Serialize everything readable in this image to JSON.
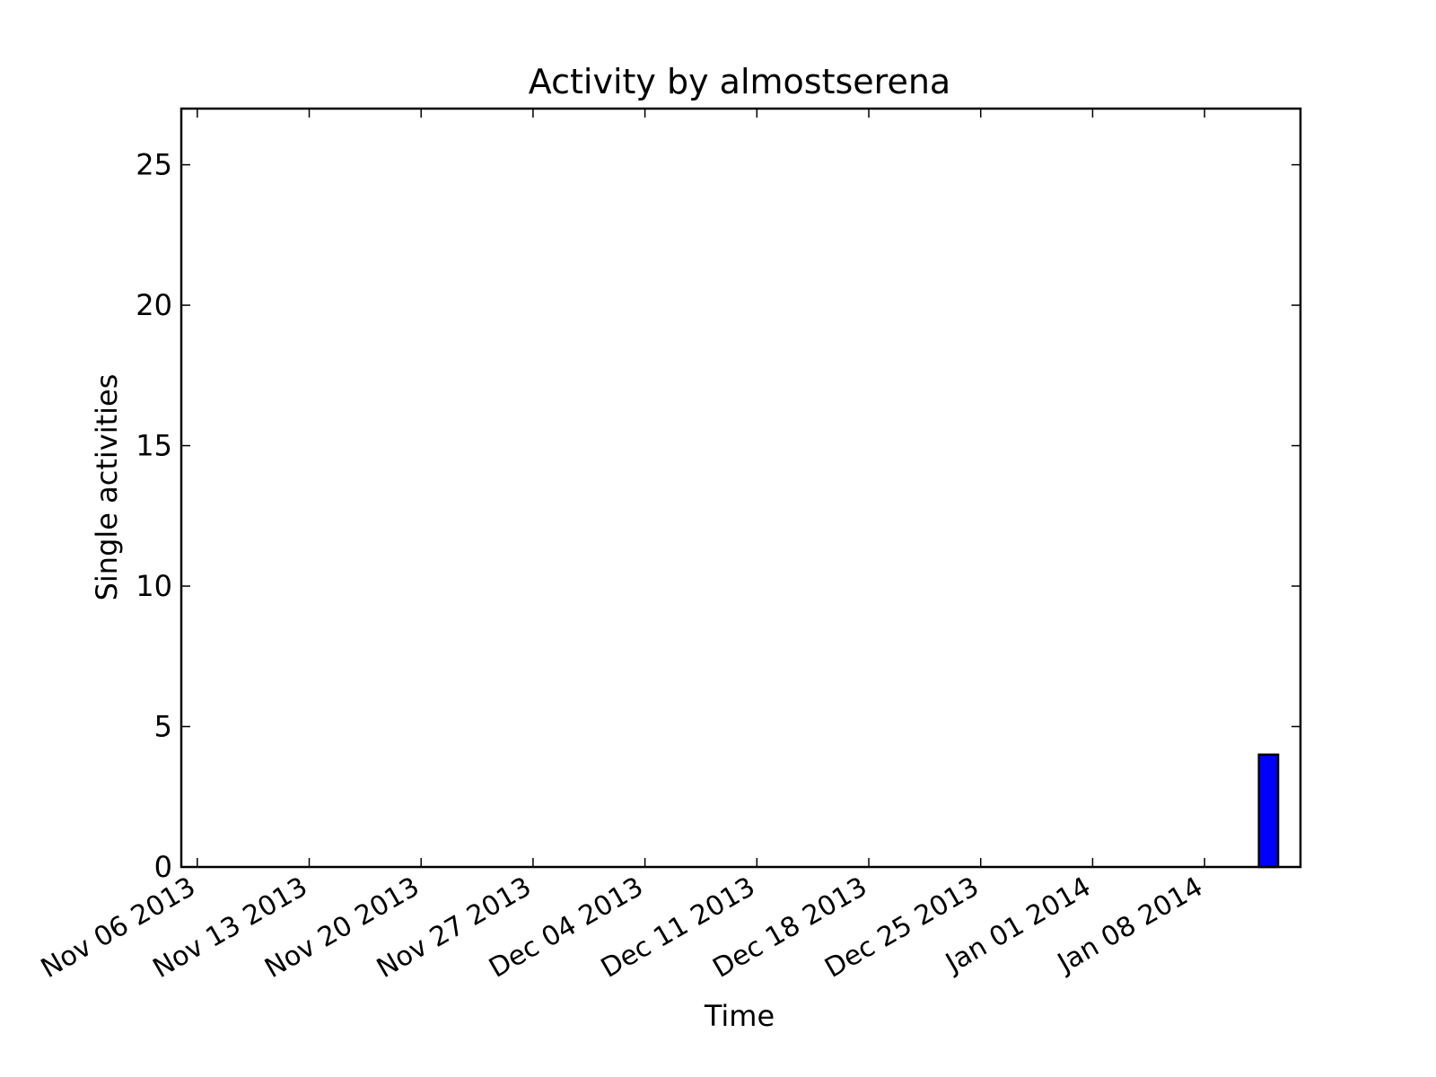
{
  "chart_data": {
    "type": "bar",
    "title": "Activity by almostserena",
    "xlabel": "Time",
    "ylabel": "Single activities",
    "x_axis": {
      "start": "2013-11-05",
      "end": "2014-01-14",
      "tick_dates": [
        "2013-11-06",
        "2013-11-13",
        "2013-11-20",
        "2013-11-27",
        "2013-12-04",
        "2013-12-11",
        "2013-12-18",
        "2013-12-25",
        "2014-01-01",
        "2014-01-08"
      ],
      "tick_labels": [
        "Nov 06 2013",
        "Nov 13 2013",
        "Nov 20 2013",
        "Nov 27 2013",
        "Dec 04 2013",
        "Dec 11 2013",
        "Dec 18 2013",
        "Dec 25 2013",
        "Jan 01 2014",
        "Jan 08 2014"
      ]
    },
    "ylim": [
      0,
      27
    ],
    "y_ticks": [
      0,
      5,
      10,
      15,
      20,
      25
    ],
    "grid": false,
    "bars": [
      {
        "date": "2014-01-12",
        "value": 4
      }
    ],
    "colors": {
      "bar": "#0000ff",
      "edge": "#000000"
    }
  }
}
